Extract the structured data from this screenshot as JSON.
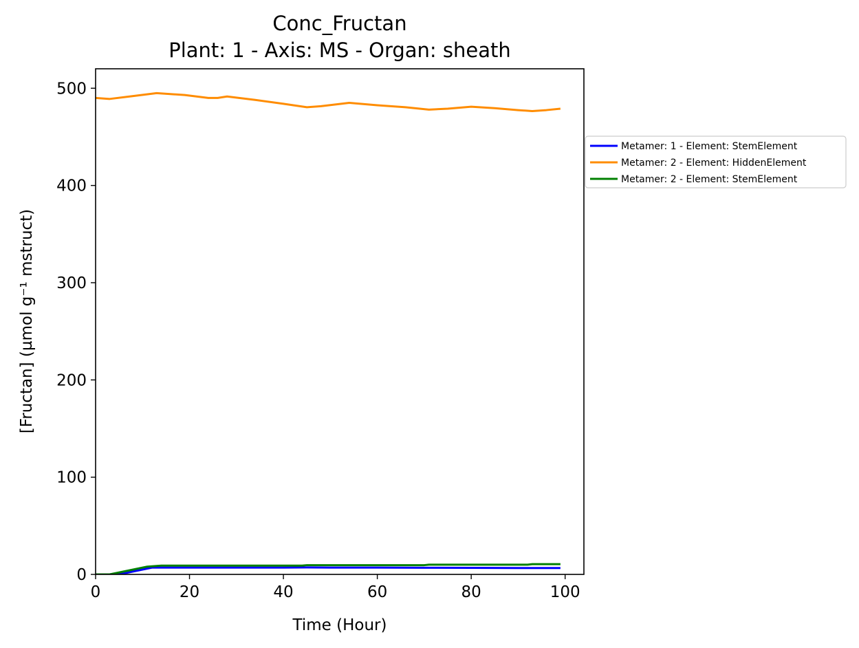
{
  "chart_data": {
    "type": "line",
    "title": "Conc_Fructan",
    "subtitle": "Plant: 1 - Axis: MS - Organ: sheath",
    "xlabel": "Time (Hour)",
    "ylabel": "[Fructan] (µmol g⁻¹ mstruct)",
    "xlim": [
      0,
      104
    ],
    "ylim": [
      0,
      520
    ],
    "xticks": [
      0,
      20,
      40,
      60,
      80,
      100
    ],
    "yticks": [
      0,
      100,
      200,
      300,
      400,
      500
    ],
    "grid": false,
    "legend_position": "right-outside",
    "series": [
      {
        "name": "Metamer: 1 - Element: StemElement",
        "color": "#0000ff",
        "x": [
          0,
          3,
          6,
          9,
          12,
          20,
          30,
          40,
          45,
          50,
          60,
          70,
          80,
          90,
          99
        ],
        "y": [
          0,
          0,
          1,
          4,
          7,
          7,
          7,
          7,
          7.2,
          7,
          7,
          6.8,
          6.7,
          6.5,
          6.5
        ]
      },
      {
        "name": "Metamer: 2 - Element: HiddenElement",
        "color": "#ff8c00",
        "x": [
          0,
          3,
          8,
          13,
          19,
          24,
          26,
          28,
          34,
          40,
          45,
          48,
          54,
          60,
          66,
          71,
          75,
          80,
          85,
          90,
          93,
          96,
          99
        ],
        "y": [
          490,
          489,
          492,
          495,
          493,
          490,
          490,
          491.5,
          488,
          484,
          480.5,
          481.5,
          485,
          482.5,
          480.5,
          478,
          479,
          481,
          479.5,
          477.5,
          476.5,
          477.5,
          479
        ]
      },
      {
        "name": "Metamer: 2 - Element: StemElement",
        "color": "#008000",
        "x": [
          0,
          3,
          7,
          11,
          14,
          20,
          30,
          40,
          44,
          45,
          60,
          70,
          71,
          80,
          92,
          93,
          99
        ],
        "y": [
          0,
          0,
          4,
          8,
          9,
          9,
          9,
          9,
          9,
          9.5,
          9.5,
          9.5,
          10,
          10,
          10,
          10.5,
          10.5
        ]
      }
    ]
  }
}
